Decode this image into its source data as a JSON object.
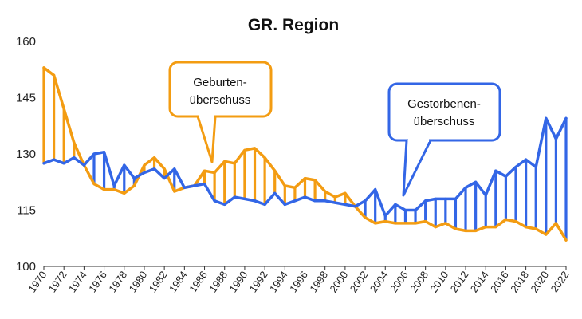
{
  "chart_data": {
    "type": "line",
    "title": "GR. Region",
    "xlabel": "",
    "ylabel": "",
    "ylim": [
      100,
      160
    ],
    "y_ticks": [
      100,
      115,
      130,
      145,
      160
    ],
    "x_tick_labels": [
      "1970",
      "1972",
      "1974",
      "1976",
      "1978",
      "1980",
      "1982",
      "1984",
      "1986",
      "1988",
      "1990",
      "1992",
      "1994",
      "1996",
      "1998",
      "2000",
      "2002",
      "2004",
      "2006",
      "2008",
      "2010",
      "2012",
      "2014",
      "2016",
      "2018",
      "2020",
      "2022"
    ],
    "grid": false,
    "x": [
      1970,
      1971,
      1972,
      1973,
      1974,
      1975,
      1976,
      1977,
      1978,
      1979,
      1980,
      1981,
      1982,
      1983,
      1984,
      1985,
      1986,
      1987,
      1988,
      1989,
      1990,
      1991,
      1992,
      1993,
      1994,
      1995,
      1996,
      1997,
      1998,
      1999,
      2000,
      2001,
      2002,
      2003,
      2004,
      2005,
      2006,
      2007,
      2008,
      2009,
      2010,
      2011,
      2012,
      2013,
      2014,
      2015,
      2016,
      2017,
      2018,
      2019,
      2020,
      2021,
      2022
    ],
    "series": [
      {
        "key": "births",
        "color": "#F39C12",
        "values": [
          153,
          151,
          142,
          133,
          127,
          122,
          120.5,
          120.5,
          119.5,
          121.5,
          127,
          129,
          126,
          120,
          121,
          121.5,
          125.5,
          125,
          128,
          127.5,
          131,
          131.5,
          129,
          125.5,
          121.5,
          121,
          123.5,
          123,
          120,
          118.5,
          119.5,
          116,
          113,
          111.5,
          112,
          111.5,
          111.5,
          111.5,
          112,
          110.5,
          111.5,
          110,
          109.5,
          109.5,
          110.5,
          110.5,
          112.5,
          112,
          110.5,
          110,
          108.5,
          111.5,
          107
        ]
      },
      {
        "key": "deaths",
        "color": "#3366E6",
        "values": [
          127.5,
          128.5,
          127.5,
          129,
          127,
          130,
          130.5,
          121.5,
          127,
          123.5,
          125,
          126,
          123.5,
          126,
          121,
          121.5,
          122,
          117.5,
          116.5,
          118.5,
          118,
          117.5,
          116.5,
          119.5,
          116.5,
          117.5,
          118.5,
          117.5,
          117.5,
          117,
          116.5,
          116,
          117.5,
          120.5,
          113.5,
          116.5,
          115,
          115,
          117.5,
          118,
          118,
          118,
          121,
          122.5,
          119,
          125.5,
          124,
          126.5,
          128.5,
          126.5,
          139.5,
          134,
          139.5
        ]
      }
    ],
    "annotations": [
      {
        "lines": [
          "Geburten-",
          "überschuss"
        ],
        "color": "#F39C12"
      },
      {
        "lines": [
          "Gestorbenen-",
          "überschuss"
        ],
        "color": "#3366E6"
      }
    ]
  }
}
